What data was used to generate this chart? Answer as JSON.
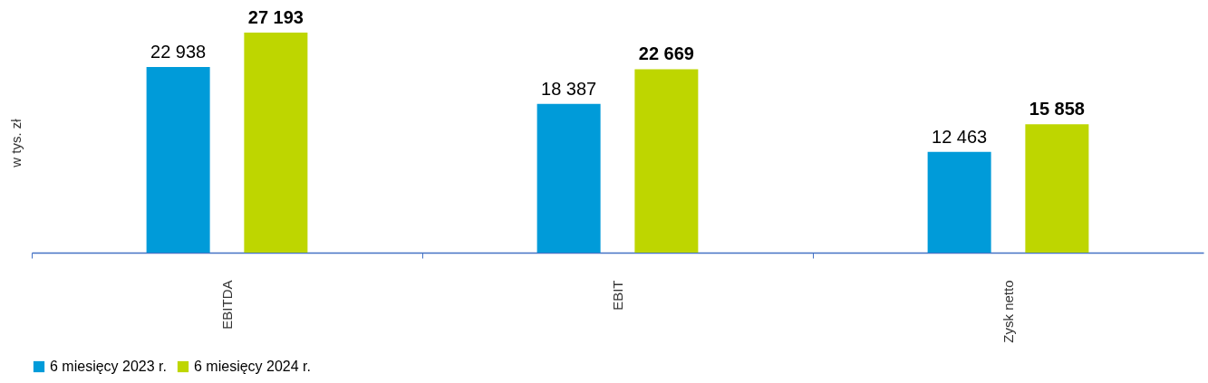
{
  "chart_data": {
    "type": "bar",
    "ylabel": "w tys. zł",
    "categories": [
      "EBITDA",
      "EBIT",
      "Zysk netto"
    ],
    "series": [
      {
        "name": "6 miesięcy 2023 r.",
        "color": "#009bd9",
        "values": [
          22938,
          18387,
          12463
        ],
        "value_labels": [
          "22 938",
          "18 387",
          "12 463"
        ]
      },
      {
        "name": "6 miesięcy 2024 r.",
        "color": "#bed600",
        "values": [
          27193,
          22669,
          15858
        ],
        "value_labels": [
          "27 193",
          "22 669",
          "15 858"
        ]
      }
    ],
    "legend": "bottom",
    "grid": false
  }
}
